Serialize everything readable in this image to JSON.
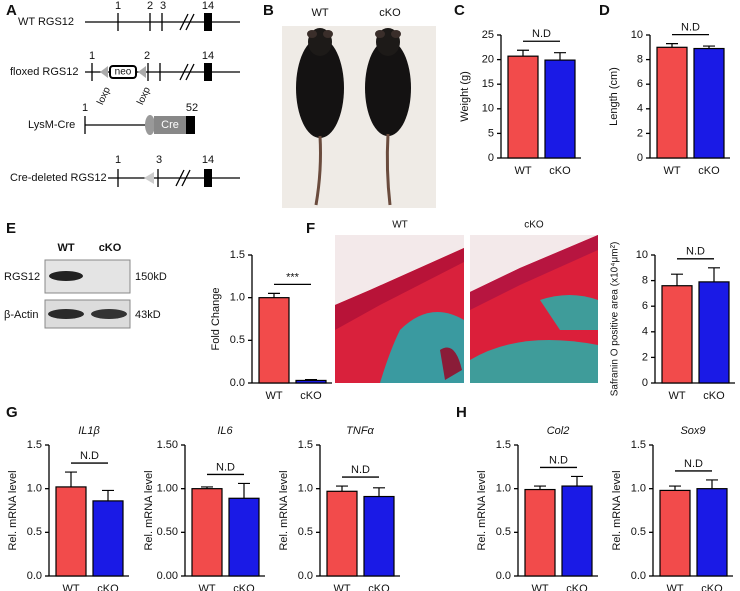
{
  "panel_letters": [
    "A",
    "B",
    "C",
    "D",
    "E",
    "F",
    "G",
    "H"
  ],
  "diagram": {
    "rows": [
      {
        "label": "WT RGS12",
        "exons": [
          "1",
          "2",
          "3",
          "14"
        ]
      },
      {
        "label": "floxed RGS12",
        "exons": [
          "1",
          "2",
          "14"
        ],
        "cassette": "neo",
        "sites": [
          "loxp",
          "loxp"
        ]
      },
      {
        "label": "LysM-Cre",
        "exons": [
          "1",
          "52"
        ],
        "gene": "Cre"
      },
      {
        "label": "Cre-deleted RGS12",
        "exons": [
          "1",
          "3",
          "14"
        ]
      }
    ]
  },
  "photo": {
    "labels": [
      "WT",
      "cKO"
    ]
  },
  "blot": {
    "lanes": [
      "WT",
      "cKO"
    ],
    "rows": [
      {
        "label": "RGS12",
        "size": "150kD"
      },
      {
        "label": "β-Actin",
        "size": "43kD"
      }
    ]
  },
  "histology": {
    "labels": [
      "WT",
      "cKO"
    ]
  },
  "chart_data": [
    {
      "type": "bar",
      "ylabel": "Weight (g)",
      "categories": [
        "WT",
        "cKO"
      ],
      "values": [
        20.7,
        19.9
      ],
      "errors": [
        1.2,
        1.5
      ],
      "colors": [
        "#f24b4b",
        "#1a1ae6"
      ],
      "ylim": [
        0,
        25
      ],
      "yticks": [
        0,
        5,
        10,
        15,
        20,
        25
      ],
      "annotation": "N.D"
    },
    {
      "type": "bar",
      "ylabel": "Length (cm)",
      "categories": [
        "WT",
        "cKO"
      ],
      "values": [
        9.0,
        8.9
      ],
      "errors": [
        0.3,
        0.2
      ],
      "colors": [
        "#f24b4b",
        "#1a1ae6"
      ],
      "ylim": [
        0,
        10
      ],
      "yticks": [
        0,
        2,
        4,
        6,
        8,
        10
      ],
      "annotation": "N.D"
    },
    {
      "type": "bar",
      "ylabel": "Fold Change",
      "categories": [
        "WT",
        "cKO"
      ],
      "values": [
        1.0,
        0.03
      ],
      "errors": [
        0.05,
        0.01
      ],
      "colors": [
        "#f24b4b",
        "#1a1ae6"
      ],
      "ylim": [
        0,
        1.5
      ],
      "yticks": [
        {
          "value": 0,
          "label": "0.0"
        },
        0.5,
        {
          "value": 1,
          "label": "1.0"
        },
        1.5
      ],
      "annotation": "***"
    },
    {
      "type": "bar",
      "ylabel": "Safranin O positive area (x10⁴μm²)",
      "categories": [
        "WT",
        "cKO"
      ],
      "values": [
        7.6,
        7.9
      ],
      "errors": [
        0.9,
        1.1
      ],
      "colors": [
        "#f24b4b",
        "#1a1ae6"
      ],
      "ylim": [
        0,
        10
      ],
      "yticks": [
        0,
        2,
        4,
        6,
        8,
        10
      ],
      "annotation": "N.D"
    },
    {
      "type": "bar",
      "title": "IL1β",
      "ylabel": "Rel. mRNA level",
      "categories": [
        "WT",
        "cKO"
      ],
      "values": [
        1.02,
        0.86
      ],
      "errors": [
        0.17,
        0.12
      ],
      "colors": [
        "#f24b4b",
        "#1a1ae6"
      ],
      "ylim": [
        0,
        1.5
      ],
      "yticks": [
        {
          "value": 0,
          "label": "0.0"
        },
        0.5,
        {
          "value": 1,
          "label": "1.0"
        },
        1.5
      ],
      "annotation": "N.D"
    },
    {
      "type": "bar",
      "title": "IL6",
      "ylabel": "Rel. mRNA level",
      "categories": [
        "WT",
        "cKO"
      ],
      "values": [
        1.0,
        0.89
      ],
      "errors": [
        0.02,
        0.17
      ],
      "colors": [
        "#f24b4b",
        "#1a1ae6"
      ],
      "ylim": [
        0,
        1.5
      ],
      "yticks": [
        {
          "value": 0,
          "label": "0.00"
        },
        {
          "value": 0.5,
          "label": "0.50"
        },
        {
          "value": 1,
          "label": "1.00"
        },
        {
          "value": 1.5,
          "label": "1.50"
        }
      ],
      "annotation": "N.D"
    },
    {
      "type": "bar",
      "title": "TNFα",
      "ylabel": "Rel. mRNA level",
      "categories": [
        "WT",
        "cKO"
      ],
      "values": [
        0.97,
        0.91
      ],
      "errors": [
        0.06,
        0.1
      ],
      "colors": [
        "#f24b4b",
        "#1a1ae6"
      ],
      "ylim": [
        0,
        1.5
      ],
      "yticks": [
        {
          "value": 0,
          "label": "0.0"
        },
        0.5,
        {
          "value": 1,
          "label": "1.0"
        },
        1.5
      ],
      "annotation": "N.D"
    },
    {
      "type": "bar",
      "title": "Col2",
      "ylabel": "Rel. mRNA level",
      "categories": [
        "WT",
        "cKO"
      ],
      "values": [
        0.99,
        1.03
      ],
      "errors": [
        0.04,
        0.11
      ],
      "colors": [
        "#f24b4b",
        "#1a1ae6"
      ],
      "ylim": [
        0,
        1.5
      ],
      "yticks": [
        {
          "value": 0,
          "label": "0.0"
        },
        0.5,
        {
          "value": 1,
          "label": "1.0"
        },
        1.5
      ],
      "annotation": "N.D"
    },
    {
      "type": "bar",
      "title": "Sox9",
      "ylabel": "Rel. mRNA level",
      "categories": [
        "WT",
        "cKO"
      ],
      "values": [
        0.98,
        1.0
      ],
      "errors": [
        0.05,
        0.1
      ],
      "colors": [
        "#f24b4b",
        "#1a1ae6"
      ],
      "ylim": [
        0,
        1.5
      ],
      "yticks": [
        {
          "value": 0,
          "label": "0.0"
        },
        0.5,
        {
          "value": 1,
          "label": "1.0"
        },
        1.5
      ],
      "annotation": "N.D"
    }
  ]
}
